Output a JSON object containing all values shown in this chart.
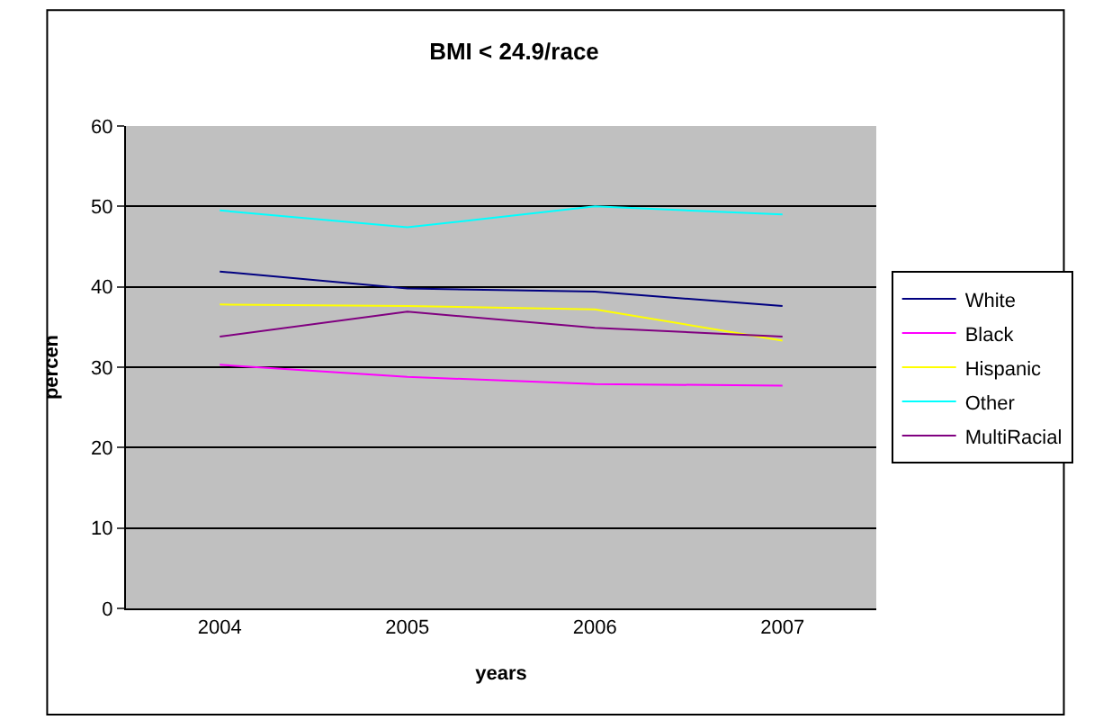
{
  "chart_data": {
    "type": "line",
    "title": "BMI < 24.9/race",
    "xlabel": "years",
    "ylabel": "percen",
    "categories": [
      "2004",
      "2005",
      "2006",
      "2007"
    ],
    "series": [
      {
        "name": "White",
        "color": "#000080",
        "values": [
          41.9,
          39.8,
          39.4,
          37.6
        ]
      },
      {
        "name": "Black",
        "color": "#ff00ff",
        "values": [
          30.3,
          28.8,
          27.9,
          27.7
        ]
      },
      {
        "name": "Hispanic",
        "color": "#ffff00",
        "values": [
          37.8,
          37.6,
          37.2,
          33.3
        ]
      },
      {
        "name": "Other",
        "color": "#00ffff",
        "values": [
          49.5,
          47.4,
          50.0,
          49.0
        ]
      },
      {
        "name": "MultiRacial",
        "color": "#800080",
        "values": [
          33.8,
          36.9,
          34.9,
          33.8
        ]
      }
    ],
    "ylim": [
      0,
      60
    ],
    "yticks": [
      0,
      10,
      20,
      30,
      40,
      50,
      60
    ],
    "grid": "y",
    "legend": "right",
    "marker": "none",
    "line_style": "solid"
  }
}
